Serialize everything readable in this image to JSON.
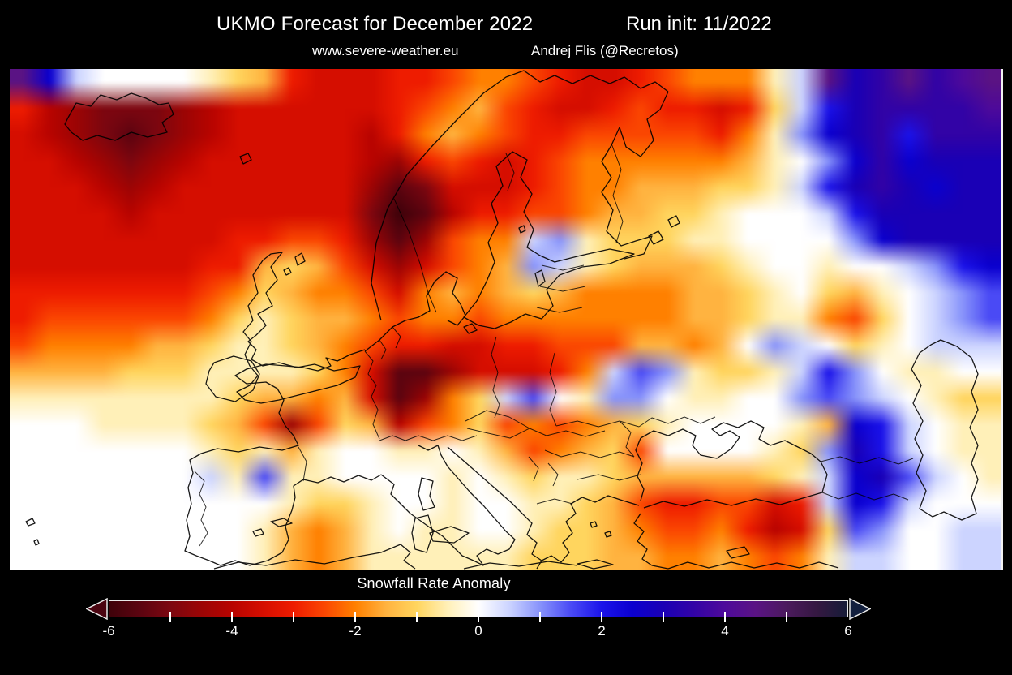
{
  "header": {
    "title_left": "UKMO Forecast for December 2022",
    "title_right": "Run init: 11/2022",
    "subtitle_left": "www.severe-weather.eu",
    "subtitle_right": "Andrej Flis (@Recretos)"
  },
  "colorbar": {
    "label": "Snowfall Rate Anomaly",
    "min": -6,
    "max": 6,
    "major_ticks": [
      -6,
      -4,
      -2,
      0,
      2,
      4,
      6
    ],
    "tick_values": [
      -5,
      -4,
      -3,
      -2,
      -1,
      0,
      1,
      2,
      3,
      4,
      5
    ],
    "under_color": "#4a0410",
    "over_color": "#13203e",
    "frame_color": "#ffffff",
    "stops": [
      [
        -6,
        "#3f020a"
      ],
      [
        -5.5,
        "#5c0410"
      ],
      [
        -5,
        "#7d0710"
      ],
      [
        -4.5,
        "#9c0505"
      ],
      [
        -4,
        "#b80400"
      ],
      [
        -3.5,
        "#d50e00"
      ],
      [
        -3,
        "#ee1c00"
      ],
      [
        -2.5,
        "#fb4702"
      ],
      [
        -2,
        "#ff8000"
      ],
      [
        -1.5,
        "#ffb340"
      ],
      [
        -1,
        "#ffd55e"
      ],
      [
        -0.5,
        "#fff0b8"
      ],
      [
        0,
        "#ffffff"
      ],
      [
        0.5,
        "#ccd4ff"
      ],
      [
        1,
        "#8893fb"
      ],
      [
        1.5,
        "#4a4af5"
      ],
      [
        2,
        "#1b13ea"
      ],
      [
        2.5,
        "#0b00cf"
      ],
      [
        3,
        "#1a00b5"
      ],
      [
        3.5,
        "#3203a6"
      ],
      [
        4,
        "#4e0a9b"
      ],
      [
        4.5,
        "#5a1384"
      ],
      [
        5,
        "#4c1a5e"
      ],
      [
        5.5,
        "#351841"
      ],
      [
        6,
        "#161c38"
      ]
    ]
  },
  "chart_data": {
    "type": "heatmap",
    "title": "Snowfall Rate Anomaly",
    "region": "Europe / North Atlantic",
    "value_range": [
      -6,
      6
    ],
    "legend_position": "bottom",
    "colormap": "colorbar.stops",
    "grid": {
      "cols": 37,
      "rows": 19,
      "values": [
        [
          4.5,
          2.5,
          0.5,
          0,
          0,
          0,
          0,
          -0.5,
          -1,
          -1.5,
          -3,
          -3.5,
          -3.5,
          -3.5,
          -3,
          -3,
          -2.5,
          -2,
          -2,
          -2.5,
          -3,
          -3.5,
          -3.5,
          -3,
          -2.5,
          -2,
          -2,
          -2,
          -0.5,
          0.5,
          4.5,
          3,
          3.5,
          4.5,
          3.5,
          4,
          4.5
        ],
        [
          -3,
          -4,
          -4.5,
          -5,
          -5,
          -5,
          -4.5,
          -4,
          -3.5,
          -3.5,
          -3.5,
          -3.5,
          -3.5,
          -3.5,
          -3,
          -2.5,
          -2,
          -1.5,
          -2.5,
          -3,
          -3.5,
          -3.5,
          -3,
          -2.5,
          -3,
          -3,
          -3.5,
          -3,
          -1,
          0.5,
          2,
          3,
          3.5,
          3.5,
          3.5,
          3.5,
          4
        ],
        [
          -3.5,
          -4,
          -4.5,
          -5,
          -5.5,
          -5,
          -4.5,
          -4,
          -3.5,
          -3.5,
          -3.5,
          -3.5,
          -3.5,
          -4,
          -3,
          -2,
          -1.5,
          -2,
          -2.5,
          -3,
          -3,
          -2.5,
          -2.5,
          -2.5,
          -2.5,
          -2.5,
          -3,
          -2,
          -0.5,
          1,
          2.5,
          3,
          3.5,
          2,
          3.5,
          3.5,
          3.5
        ],
        [
          -3.5,
          -3.5,
          -4,
          -4.5,
          -5,
          -4.5,
          -4,
          -3.5,
          -3.5,
          -3.5,
          -3.5,
          -3.5,
          -3.5,
          -4,
          -4.5,
          -3,
          -2.5,
          -3,
          -3.5,
          -3,
          -2.5,
          -2,
          -2,
          -2,
          -2,
          -2,
          -2,
          -1.5,
          -0.5,
          0,
          1,
          2.5,
          3.5,
          2.5,
          3,
          3,
          3
        ],
        [
          -3.5,
          -3.5,
          -3.5,
          -4,
          -4.5,
          -4,
          -3.5,
          -3.5,
          -3.5,
          -3.5,
          -3.5,
          -3.5,
          -3.5,
          -4.5,
          -5.5,
          -5,
          -3.5,
          -3.5,
          -3.5,
          -3,
          -2.5,
          -2,
          -2,
          -1.5,
          -1.5,
          -1.5,
          -1,
          -1,
          -0.5,
          0.5,
          2,
          3,
          3.5,
          3,
          2.5,
          3,
          3
        ],
        [
          -3.5,
          -3.5,
          -3.5,
          -3.5,
          -4,
          -3.5,
          -3.5,
          -3.5,
          -3.5,
          -3.5,
          -3.5,
          -3.5,
          -3.5,
          -5,
          -6,
          -5.5,
          -4,
          -3,
          -3,
          -2.5,
          -2.5,
          -2,
          -1.5,
          -1.5,
          -1,
          -1,
          -0.5,
          0,
          0,
          0,
          0.5,
          2,
          3,
          3,
          3,
          3,
          3
        ],
        [
          -3.5,
          -3.5,
          -3.5,
          -3.5,
          -3.5,
          -3.5,
          -3.5,
          -3.5,
          -3,
          -3,
          -2.5,
          -2.5,
          -3,
          -4.5,
          -5.5,
          -4.5,
          -2.5,
          -2,
          -2,
          0.5,
          1,
          -0.5,
          -1,
          -1,
          -1,
          -0.5,
          -0.5,
          0,
          0,
          0,
          0,
          1,
          2.5,
          3,
          3,
          3,
          3
        ],
        [
          -3.5,
          -3.5,
          -3.5,
          -3.5,
          -3.5,
          -3.5,
          -3.5,
          -3,
          -3,
          -1.5,
          -1,
          -1.5,
          -2.5,
          -3.5,
          -4.5,
          -3.5,
          -2.5,
          -2,
          -1.5,
          1,
          0.5,
          -0.5,
          -1,
          -1.5,
          -1.5,
          -1.5,
          -1,
          -0.5,
          0,
          0,
          -0.5,
          0,
          0,
          0.5,
          1,
          2,
          2.5
        ],
        [
          -3,
          -3,
          -3,
          -3,
          -3,
          -3,
          -3,
          -2.5,
          -2,
          -1,
          -1.5,
          -2,
          -2,
          -2.5,
          -3.5,
          -2,
          -1.5,
          -2,
          -1.5,
          -1,
          -1.5,
          -2,
          -2,
          -2,
          -2,
          -1.5,
          -1.5,
          -1,
          -0.5,
          0,
          -1,
          -1.5,
          -0.5,
          0,
          0.5,
          1,
          1.5
        ],
        [
          -3,
          -2.5,
          -2.5,
          -2.5,
          -2.5,
          -2.5,
          -2.5,
          -2,
          -1,
          -0.5,
          -1,
          -1.5,
          -1.5,
          -2,
          -2.5,
          -2,
          -2,
          -2.5,
          -2,
          -2,
          -2,
          -2,
          -2,
          -2,
          -2,
          -1.5,
          -1.5,
          -1,
          -0.5,
          -0.5,
          -2,
          -2.5,
          -1,
          0,
          0.5,
          1,
          1.5
        ],
        [
          -2.5,
          -2,
          -2,
          -2,
          -2,
          -1.5,
          -1.5,
          -1,
          -0.5,
          -0.5,
          -1,
          -1.5,
          -2,
          -2.5,
          -3,
          -3,
          -3.5,
          -3.5,
          -3,
          -3,
          -2.5,
          -2.5,
          -2.5,
          -1.5,
          -1.5,
          -2,
          -1.5,
          0,
          1,
          0.5,
          0,
          -1,
          -0.5,
          0,
          0.5,
          0.5,
          0.5
        ],
        [
          -1.5,
          -1.5,
          -1.5,
          -1.5,
          -1,
          -1,
          -1,
          -0.5,
          -0.5,
          -0.5,
          -0.5,
          -1,
          -2,
          -3.5,
          -5.5,
          -5.5,
          -4.5,
          -3.5,
          -3.5,
          -3.5,
          -3,
          -2,
          0.5,
          1.5,
          1,
          -0.5,
          -1,
          -1,
          -0.5,
          0.5,
          2,
          1,
          0,
          -0.5,
          -0.5,
          0,
          0
        ],
        [
          -0.5,
          -0.5,
          -0.5,
          -0.5,
          -0.5,
          -0.5,
          -0.5,
          -0.5,
          -1,
          -1.5,
          -1.5,
          -2,
          -1.5,
          -3.5,
          -5.5,
          -4.5,
          -2,
          -1,
          0.5,
          1.5,
          0,
          -0.5,
          1,
          1,
          0,
          -0.5,
          -0.5,
          0,
          0,
          1,
          1.5,
          1,
          0.5,
          0,
          -0.5,
          -1,
          -1
        ],
        [
          0,
          0,
          0,
          -0.5,
          -0.5,
          -0.5,
          -0.5,
          -1,
          -1.5,
          -2.5,
          -4.5,
          -2.5,
          -1,
          -1.5,
          -4,
          -2.5,
          -2,
          -1,
          -2.5,
          -2,
          -2.5,
          -2,
          -1.5,
          -1,
          -0.5,
          0,
          0,
          0,
          0,
          -0.5,
          -1.5,
          2.5,
          2,
          0.5,
          0,
          -0.5,
          -0.5
        ],
        [
          0,
          0,
          0,
          0,
          0,
          0,
          0,
          -0.5,
          -1,
          -0.5,
          -1.5,
          -0.5,
          0,
          0,
          -0.5,
          -0.5,
          0,
          -0.5,
          -1.5,
          -2.5,
          -2,
          -1.5,
          -1,
          -2.5,
          0,
          0,
          0,
          0,
          -0.5,
          -1,
          1,
          3,
          2,
          0.5,
          0,
          -0.5,
          -0.5
        ],
        [
          0,
          0,
          0,
          0,
          0,
          0,
          0,
          0.5,
          -0.5,
          1.5,
          -0.5,
          -0.5,
          0,
          0,
          0,
          0,
          -0.5,
          0,
          -0.5,
          -1,
          -0.5,
          -0.5,
          -1,
          -1.5,
          -1.5,
          -1.5,
          -1.5,
          -1.5,
          -1,
          -0.5,
          0.5,
          2.5,
          3,
          1.5,
          0.5,
          0,
          -0.5
        ],
        [
          0,
          0,
          0,
          0,
          0,
          0,
          0,
          0,
          0,
          0,
          -0.5,
          -1,
          -1,
          -0.5,
          0,
          0,
          -0.5,
          0,
          0,
          -0.5,
          -0.5,
          -1,
          -1.5,
          -2.5,
          -3,
          -3,
          -2.5,
          -2.5,
          -3.5,
          -3,
          0.5,
          2.5,
          2,
          0.5,
          0,
          0,
          0
        ],
        [
          0,
          0,
          0,
          0,
          0,
          0,
          0,
          0,
          0,
          -0.5,
          -1.5,
          -2,
          -1.5,
          -0.5,
          0,
          -0.5,
          -0.5,
          0,
          0,
          -0.5,
          -1,
          -1,
          -1.5,
          -2,
          -2.5,
          -2.5,
          -2,
          -3,
          -4,
          -3.5,
          -1,
          1.5,
          1,
          0,
          0,
          0.5,
          0.5
        ],
        [
          0,
          0,
          0,
          0,
          0,
          0,
          0,
          0,
          0,
          -0.5,
          -1.5,
          -2,
          -1.5,
          -0.5,
          -0.5,
          -0.5,
          -0.5,
          -0.5,
          -0.5,
          -1,
          -1,
          -1,
          -1.5,
          -1.5,
          -2,
          -2,
          -1.5,
          -2,
          -2.5,
          -2,
          -0.5,
          0.5,
          0.5,
          0,
          0,
          0.5,
          0.5
        ]
      ]
    }
  }
}
